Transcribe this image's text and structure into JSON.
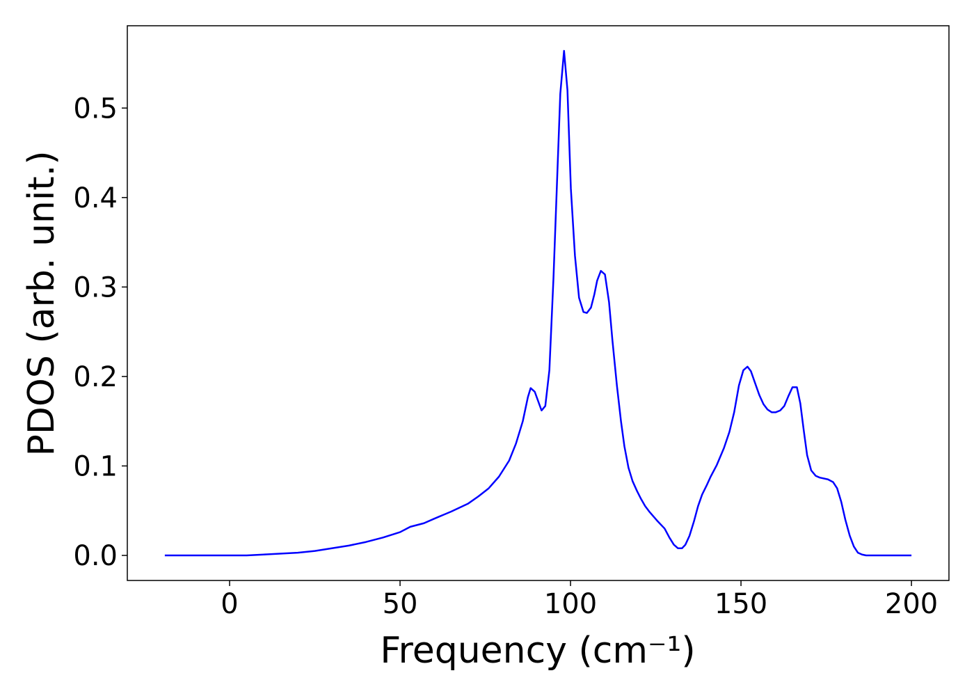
{
  "chart_data": {
    "type": "line",
    "xlabel": "Frequency (cm⁻¹)",
    "ylabel": "PDOS (arb. unit.)",
    "x": [
      -19,
      -10,
      0,
      5,
      10,
      20,
      25,
      30,
      35,
      40,
      45,
      50,
      53,
      57,
      60,
      65,
      70,
      73,
      76,
      79,
      82,
      84,
      86,
      87.5,
      88.3,
      89.5,
      91.5,
      92.6,
      93.8,
      95,
      97,
      98.1,
      99.1,
      100.1,
      101.3,
      102.5,
      103.8,
      104.8,
      106,
      107,
      107.8,
      108.9,
      110.1,
      111.3,
      112.3,
      113.6,
      114.8,
      115.8,
      117,
      118.2,
      119.5,
      120.7,
      121.9,
      123.1,
      125.6,
      127.6,
      129,
      130.3,
      131.5,
      132.7,
      133.7,
      134.9,
      136.2,
      137.4,
      138.6,
      139.9,
      141.1,
      142.9,
      145,
      146.6,
      148,
      149.4,
      150.7,
      151.9,
      152.9,
      154.1,
      155.4,
      156.6,
      157.8,
      159,
      160.2,
      161.5,
      162.7,
      163.9,
      165.1,
      166.4,
      167.4,
      168.4,
      169.4,
      170.6,
      171.9,
      173.1,
      175.5,
      177,
      178.2,
      179.4,
      180.6,
      181.9,
      183.1,
      184.3,
      185.5,
      186.7,
      200
    ],
    "series": [
      {
        "color": "#0000ff",
        "values": [
          0,
          0,
          0,
          0,
          0.001,
          0.003,
          0.005,
          0.008,
          0.011,
          0.015,
          0.02,
          0.026,
          0.032,
          0.036,
          0.041,
          0.049,
          0.058,
          0.066,
          0.075,
          0.088,
          0.106,
          0.125,
          0.15,
          0.177,
          0.187,
          0.183,
          0.162,
          0.167,
          0.207,
          0.31,
          0.516,
          0.564,
          0.52,
          0.41,
          0.335,
          0.288,
          0.272,
          0.271,
          0.277,
          0.292,
          0.307,
          0.318,
          0.314,
          0.283,
          0.24,
          0.19,
          0.15,
          0.122,
          0.098,
          0.083,
          0.072,
          0.063,
          0.055,
          0.049,
          0.038,
          0.03,
          0.02,
          0.012,
          0.008,
          0.008,
          0.012,
          0.022,
          0.038,
          0.055,
          0.068,
          0.078,
          0.088,
          0.101,
          0.12,
          0.138,
          0.16,
          0.19,
          0.207,
          0.211,
          0.206,
          0.193,
          0.179,
          0.169,
          0.163,
          0.16,
          0.16,
          0.162,
          0.167,
          0.178,
          0.188,
          0.188,
          0.17,
          0.14,
          0.112,
          0.095,
          0.089,
          0.087,
          0.085,
          0.082,
          0.075,
          0.06,
          0.04,
          0.022,
          0.01,
          0.003,
          0.001,
          0,
          0
        ]
      }
    ],
    "xlim": [
      -30,
      211
    ],
    "xticks": [
      0,
      50,
      100,
      150,
      200
    ],
    "ylim": [
      -0.028,
      0.592
    ],
    "yticks": [
      {
        "value": 0,
        "label": "0.0"
      },
      0.1,
      0.2,
      0.3,
      0.4,
      0.5
    ],
    "grid": false
  }
}
